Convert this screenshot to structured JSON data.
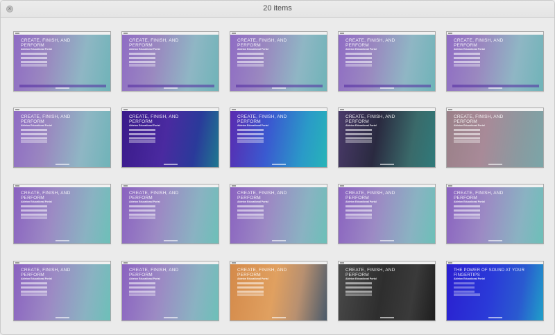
{
  "window": {
    "title": "20 items",
    "close_glyph": "×"
  },
  "thumbnails": [
    {
      "headline": "CREATE, FINISH, AND PERFORM",
      "subtitle": "Ableton Educational Portal",
      "theme": "hands-purple"
    },
    {
      "headline": "CREATE, FINISH, AND PERFORM",
      "subtitle": "Ableton Educational Portal",
      "theme": "hands-purple"
    },
    {
      "headline": "CREATE, FINISH, AND PERFORM",
      "subtitle": "Ableton Educational Portal",
      "theme": "hands-purple"
    },
    {
      "headline": "CREATE, FINISH, AND PERFORM",
      "subtitle": "Ableton Educational Portal",
      "theme": "hands-purple"
    },
    {
      "headline": "CREATE, FINISH, AND PERFORM",
      "subtitle": "Ableton Educational Portal",
      "theme": "hands-purple"
    },
    {
      "headline": "CREATE, FINISH, AND PERFORM",
      "subtitle": "Ableton Educational Portal",
      "theme": "hands-purple"
    },
    {
      "headline": "CREATE, FINISH, AND PERFORM",
      "subtitle": "Ableton Educational Portal",
      "theme": "dj-purple"
    },
    {
      "headline": "CREATE, FINISH, AND PERFORM",
      "subtitle": "Ableton Educational Portal",
      "theme": "push-blue"
    },
    {
      "headline": "CREATE, FINISH, AND PERFORM",
      "subtitle": "Ableton Educational Portal",
      "theme": "laptop-dark"
    },
    {
      "headline": "CREATE, FINISH, AND PERFORM",
      "subtitle": "Ableton Educational Portal",
      "theme": "desk-pink"
    },
    {
      "headline": "CREATE, FINISH, AND PERFORM",
      "subtitle": "Ableton Educational Portal",
      "theme": "desk-purple"
    },
    {
      "headline": "CREATE, FINISH, AND PERFORM",
      "subtitle": "Ableton Educational Portal",
      "theme": "desk-purple"
    },
    {
      "headline": "CREATE, FINISH, AND PERFORM",
      "subtitle": "Ableton Educational Portal",
      "theme": "desk-purple"
    },
    {
      "headline": "CREATE, FINISH, AND PERFORM",
      "subtitle": "Ableton Educational Portal",
      "theme": "desk-purple"
    },
    {
      "headline": "CREATE, FINISH, AND PERFORM",
      "subtitle": "Ableton Educational Portal",
      "theme": "desk-purple"
    },
    {
      "headline": "CREATE, FINISH, AND PERFORM",
      "subtitle": "Ableton Educational Portal",
      "theme": "desk-purple"
    },
    {
      "headline": "CREATE, FINISH, AND PERFORM",
      "subtitle": "Ableton Educational Portal",
      "theme": "desk-purple"
    },
    {
      "headline": "CREATE, FINISH, AND PERFORM",
      "subtitle": "Ableton Educational Portal",
      "theme": "mixer-orange"
    },
    {
      "headline": "CREATE, FINISH, AND PERFORM",
      "subtitle": "Ableton Educational Portal",
      "theme": "push-dark"
    },
    {
      "headline": "THE POWER OF SOUND AT YOUR FINGERTIPS",
      "subtitle": "Ableton Educational Portal",
      "theme": "solid-blue"
    }
  ],
  "themes": {
    "hands-purple": "linear-gradient(100deg,#8f6cc4 0%,#9a88c0 35%,#8fb6c4 70%,#6fb4b8 100%)",
    "dj-purple": "linear-gradient(100deg,#3a1a8a 0%,#4a2aa0 45%,#2a3a9a 75%,#1f7890 100%)",
    "push-blue": "linear-gradient(100deg,#5a2ab0 0%,#3a5ad0 40%,#2a9ac8 75%,#27b4b8 100%)",
    "laptop-dark": "linear-gradient(100deg,#4a3a6a 0%,#2a2a40 40%,#3a6a6a 75%,#2f7a7a 100%)",
    "desk-pink": "linear-gradient(100deg,#9a8088 0%,#a88a98 40%,#8a9aa0 75%,#7aa6a8 100%)",
    "desk-purple": "linear-gradient(100deg,#8a62c0 0%,#9c8ac4 40%,#8ab2c2 75%,#6cc0b8 100%)",
    "mixer-orange": "linear-gradient(100deg,#d48a4a 0%,#e0a060 45%,#b89070 70%,#4a5a6a 100%)",
    "push-dark": "linear-gradient(100deg,#4a4a4a 0%,#2e2e2e 45%,#3a3a3a 75%,#1e1e1e 100%)",
    "solid-blue": "linear-gradient(100deg,#2a1fd0 0%,#2a3ad8 45%,#2a5ad0 75%,#1fa0c8 100%)"
  }
}
